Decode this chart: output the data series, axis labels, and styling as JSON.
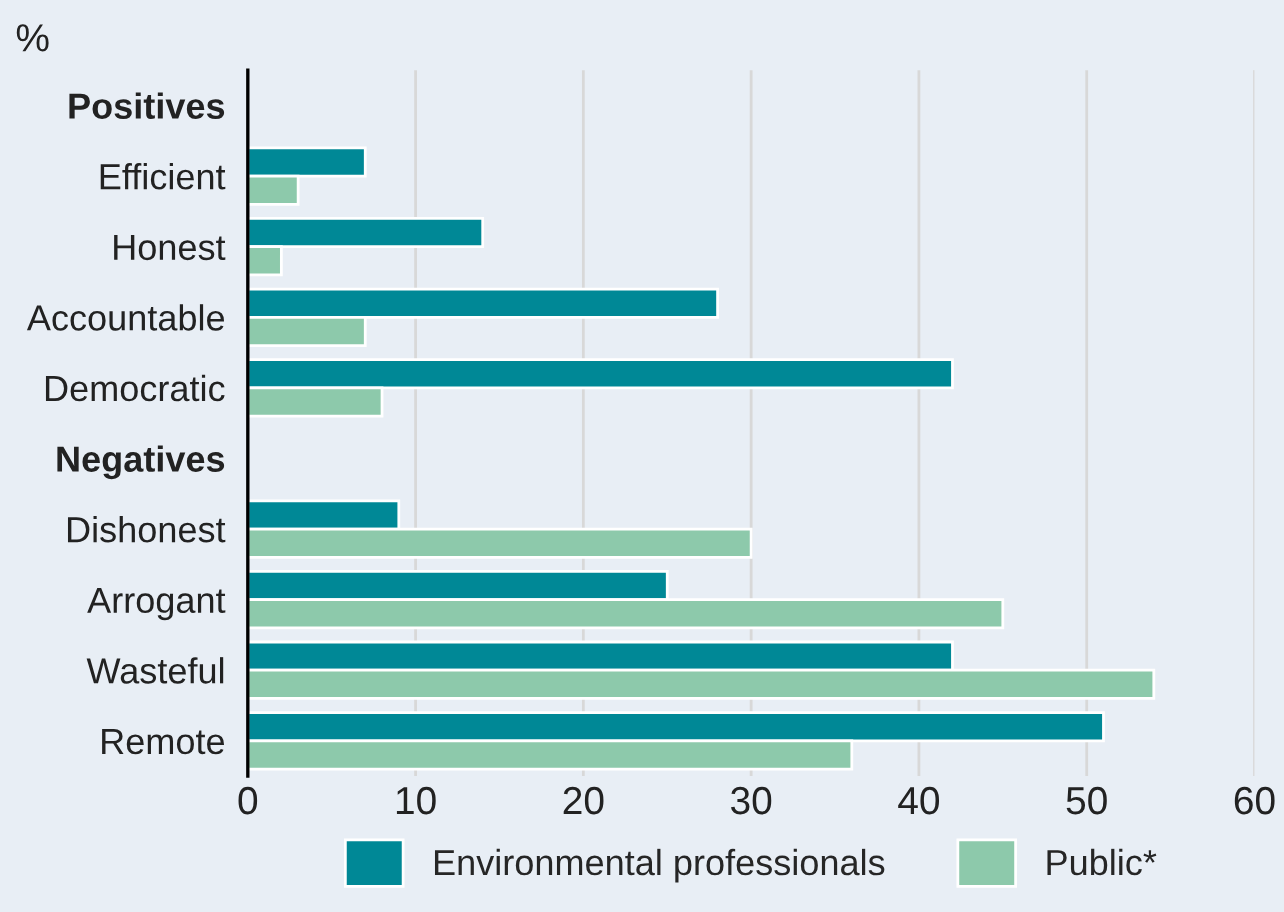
{
  "chart_data": {
    "type": "bar",
    "orientation": "horizontal",
    "xlabel": "%",
    "categories": [
      "Positives",
      "Efficient",
      "Honest",
      "Accountable",
      "Democratic",
      "Negatives",
      "Dishonest",
      "Arrogant",
      "Wasteful",
      "Remote"
    ],
    "series": [
      {
        "name": "Environmental professionals",
        "color": "#008896",
        "values": [
          null,
          7,
          14,
          28,
          42,
          null,
          9,
          25,
          42,
          51
        ]
      },
      {
        "name": "Public*",
        "color": "#8dc9ab",
        "values": [
          null,
          3,
          2,
          7,
          8,
          null,
          30,
          45,
          54,
          36
        ]
      }
    ],
    "xlim": [
      0,
      60
    ],
    "xticks": [
      0,
      10,
      20,
      30,
      40,
      50,
      60
    ],
    "grid": "x",
    "legend": "bottom"
  }
}
